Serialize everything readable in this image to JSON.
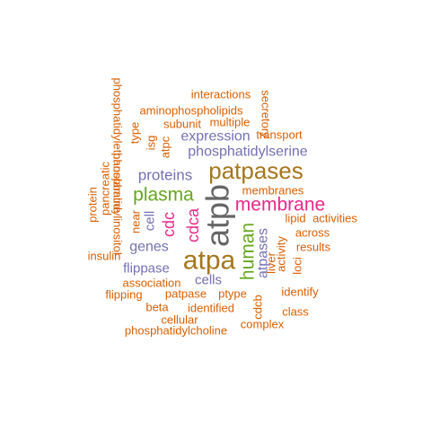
{
  "colors": {
    "orange": "#d95f02",
    "purple": "#7570b3",
    "magenta": "#e7298a",
    "green": "#66a61e",
    "gold": "#a6761d",
    "gray": "#666666"
  },
  "words": [
    {
      "text": "atpb",
      "color": "gray"
    },
    {
      "text": "atpa",
      "color": "gold"
    },
    {
      "text": "patpases",
      "color": "gold"
    },
    {
      "text": "membrane",
      "color": "magenta"
    },
    {
      "text": "plasma",
      "color": "green"
    },
    {
      "text": "human",
      "color": "green"
    },
    {
      "text": "cdca",
      "color": "magenta"
    },
    {
      "text": "cdc",
      "color": "magenta"
    },
    {
      "text": "proteins",
      "color": "purple"
    },
    {
      "text": "phosphatidylserine",
      "color": "purple"
    },
    {
      "text": "expression",
      "color": "purple"
    },
    {
      "text": "atpases",
      "color": "purple"
    },
    {
      "text": "genes",
      "color": "purple"
    },
    {
      "text": "flippase",
      "color": "purple"
    },
    {
      "text": "cells",
      "color": "purple"
    },
    {
      "text": "cell",
      "color": "purple"
    },
    {
      "text": "membranes",
      "color": "orange"
    },
    {
      "text": "interactions",
      "color": "orange"
    },
    {
      "text": "aminophospholipids",
      "color": "orange"
    },
    {
      "text": "subunit",
      "color": "orange"
    },
    {
      "text": "multiple",
      "color": "orange"
    },
    {
      "text": "transport",
      "color": "orange"
    },
    {
      "text": "secretory",
      "color": "orange"
    },
    {
      "text": "phosphatidylethanolamine",
      "color": "orange"
    },
    {
      "text": "type",
      "color": "orange"
    },
    {
      "text": "isg",
      "color": "orange"
    },
    {
      "text": "atpc",
      "color": "orange"
    },
    {
      "text": "pancreatic",
      "color": "orange"
    },
    {
      "text": "protein",
      "color": "orange"
    },
    {
      "text": "phosphatidylinositol",
      "color": "orange"
    },
    {
      "text": "near",
      "color": "orange"
    },
    {
      "text": "lipid",
      "color": "orange"
    },
    {
      "text": "activities",
      "color": "orange"
    },
    {
      "text": "across",
      "color": "orange"
    },
    {
      "text": "results",
      "color": "orange"
    },
    {
      "text": "activity",
      "color": "orange"
    },
    {
      "text": "loci",
      "color": "orange"
    },
    {
      "text": "liver",
      "color": "orange"
    },
    {
      "text": "insulin",
      "color": "orange"
    },
    {
      "text": "association",
      "color": "orange"
    },
    {
      "text": "patpase",
      "color": "orange"
    },
    {
      "text": "ptype",
      "color": "orange"
    },
    {
      "text": "identify",
      "color": "orange"
    },
    {
      "text": "flipping",
      "color": "orange"
    },
    {
      "text": "cdcb",
      "color": "orange"
    },
    {
      "text": "beta",
      "color": "orange"
    },
    {
      "text": "identified",
      "color": "orange"
    },
    {
      "text": "class",
      "color": "orange"
    },
    {
      "text": "cellular",
      "color": "orange"
    },
    {
      "text": "complex",
      "color": "orange"
    },
    {
      "text": "phosphatidylcholine",
      "color": "orange"
    }
  ]
}
